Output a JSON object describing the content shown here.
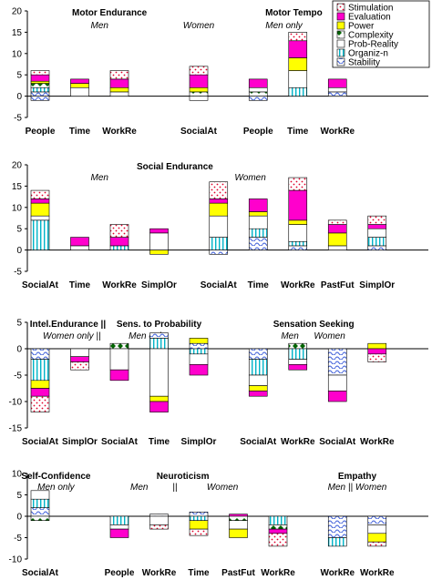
{
  "legend": {
    "items": [
      {
        "key": "stim",
        "label": "Stimulation",
        "fill": "#ffffff",
        "pattern": "dots",
        "patternColor": "#e0002a"
      },
      {
        "key": "eval",
        "label": "Evaluation",
        "fill": "#ff00cc",
        "pattern": "none"
      },
      {
        "key": "power",
        "label": "Power",
        "fill": "#ffff00",
        "pattern": "none"
      },
      {
        "key": "comp",
        "label": "Complexity",
        "fill": "#ffffff",
        "pattern": "diamonds",
        "patternColor": "#006400"
      },
      {
        "key": "prob",
        "label": "Prob-Reality",
        "fill": "#ffffff",
        "pattern": "none"
      },
      {
        "key": "org",
        "label": "Organiz-n",
        "fill": "#ffffff",
        "pattern": "vlines",
        "patternColor": "#00b4c8"
      },
      {
        "key": "stab",
        "label": "Stability",
        "fill": "#ffffff",
        "pattern": "waves",
        "patternColor": "#3a5bd9"
      }
    ]
  },
  "chart_data": [
    {
      "type": "bar",
      "stacked": true,
      "ylim": [
        -5,
        20
      ],
      "yticks": [
        -5,
        0,
        5,
        10,
        15,
        20
      ],
      "grid": false,
      "titles": [
        {
          "text": "Motor Endurance",
          "style": "bold",
          "at": 1.75
        },
        {
          "text": "Motor Tempo",
          "style": "bold",
          "at": 6.4
        }
      ],
      "notes": [
        {
          "text": "Men",
          "at": 1.5
        },
        {
          "text": "Women",
          "at": 4
        },
        {
          "text": "Men only",
          "at": 6.15
        }
      ],
      "bars": [
        {
          "label": "People",
          "x": 0,
          "neg": [
            {
              "k": "stab",
              "v": 1
            }
          ],
          "pos": [
            {
              "k": "stab",
              "v": 1
            },
            {
              "k": "org",
              "v": 1
            },
            {
              "k": "comp",
              "v": 1
            },
            {
              "k": "power",
              "v": 0.5
            },
            {
              "k": "eval",
              "v": 1.5
            },
            {
              "k": "stim",
              "v": 1
            }
          ]
        },
        {
          "label": "Time",
          "x": 1,
          "neg": [],
          "pos": [
            {
              "k": "prob",
              "v": 2
            },
            {
              "k": "power",
              "v": 1
            },
            {
              "k": "eval",
              "v": 1
            }
          ]
        },
        {
          "label": "WorkRe",
          "x": 2,
          "neg": [],
          "pos": [
            {
              "k": "prob",
              "v": 1
            },
            {
              "k": "power",
              "v": 1
            },
            {
              "k": "eval",
              "v": 2
            },
            {
              "k": "stim",
              "v": 2
            }
          ]
        },
        {
          "label": "SocialAt",
          "x": 4,
          "neg": [
            {
              "k": "prob",
              "v": 1
            }
          ],
          "pos": [
            {
              "k": "comp",
              "v": 1
            },
            {
              "k": "power",
              "v": 1
            },
            {
              "k": "eval",
              "v": 3
            },
            {
              "k": "stim",
              "v": 2
            }
          ]
        },
        {
          "label": "People",
          "x": 5.5,
          "neg": [
            {
              "k": "stab",
              "v": 1
            }
          ],
          "pos": [
            {
              "k": "comp",
              "v": 1
            },
            {
              "k": "prob",
              "v": 1
            },
            {
              "k": "eval",
              "v": 2
            }
          ]
        },
        {
          "label": "Time",
          "x": 6.5,
          "neg": [],
          "pos": [
            {
              "k": "org",
              "v": 2
            },
            {
              "k": "prob",
              "v": 4
            },
            {
              "k": "power",
              "v": 3
            },
            {
              "k": "eval",
              "v": 4
            },
            {
              "k": "stim",
              "v": 2
            }
          ]
        },
        {
          "label": "WorkRe",
          "x": 7.5,
          "neg": [],
          "pos": [
            {
              "k": "stab",
              "v": 1
            },
            {
              "k": "prob",
              "v": 1
            },
            {
              "k": "eval",
              "v": 2
            }
          ]
        }
      ]
    },
    {
      "type": "bar",
      "stacked": true,
      "ylim": [
        -5,
        20
      ],
      "yticks": [
        -5,
        0,
        5,
        10,
        15,
        20
      ],
      "grid": false,
      "titles": [
        {
          "text": "Social Endurance",
          "style": "bold",
          "at": 3.4
        }
      ],
      "notes": [
        {
          "text": "Men",
          "at": 1.5
        },
        {
          "text": "Women",
          "at": 5.3
        }
      ],
      "bars": [
        {
          "label": "SocialAt",
          "x": 0,
          "neg": [],
          "pos": [
            {
              "k": "org",
              "v": 7
            },
            {
              "k": "prob",
              "v": 1
            },
            {
              "k": "power",
              "v": 3
            },
            {
              "k": "eval",
              "v": 1
            },
            {
              "k": "stim",
              "v": 2
            }
          ]
        },
        {
          "label": "Time",
          "x": 1,
          "neg": [],
          "pos": [
            {
              "k": "prob",
              "v": 1
            },
            {
              "k": "eval",
              "v": 2
            }
          ]
        },
        {
          "label": "WorkRe",
          "x": 2,
          "neg": [],
          "pos": [
            {
              "k": "org",
              "v": 1
            },
            {
              "k": "eval",
              "v": 2
            },
            {
              "k": "stim",
              "v": 3
            }
          ]
        },
        {
          "label": "SimplOr",
          "x": 3,
          "neg": [
            {
              "k": "power",
              "v": 1
            }
          ],
          "pos": [
            {
              "k": "prob",
              "v": 4
            },
            {
              "k": "eval",
              "v": 1
            }
          ]
        },
        {
          "label": "SocialAt",
          "x": 4.5,
          "neg": [
            {
              "k": "stab",
              "v": 1
            }
          ],
          "pos": [
            {
              "k": "org",
              "v": 3
            },
            {
              "k": "prob",
              "v": 5
            },
            {
              "k": "power",
              "v": 3
            },
            {
              "k": "eval",
              "v": 1
            },
            {
              "k": "stim",
              "v": 4
            }
          ]
        },
        {
          "label": "Time",
          "x": 5.5,
          "neg": [],
          "pos": [
            {
              "k": "stab",
              "v": 3
            },
            {
              "k": "org",
              "v": 2
            },
            {
              "k": "prob",
              "v": 3
            },
            {
              "k": "power",
              "v": 1
            },
            {
              "k": "eval",
              "v": 3
            }
          ]
        },
        {
          "label": "WorkRe",
          "x": 6.5,
          "neg": [],
          "pos": [
            {
              "k": "stab",
              "v": 1
            },
            {
              "k": "org",
              "v": 1
            },
            {
              "k": "prob",
              "v": 4
            },
            {
              "k": "power",
              "v": 1
            },
            {
              "k": "eval",
              "v": 7
            },
            {
              "k": "stim",
              "v": 3
            }
          ]
        },
        {
          "label": "PastFut",
          "x": 7.5,
          "neg": [],
          "pos": [
            {
              "k": "prob",
              "v": 1
            },
            {
              "k": "power",
              "v": 3
            },
            {
              "k": "eval",
              "v": 2
            },
            {
              "k": "stim",
              "v": 1
            }
          ]
        },
        {
          "label": "SimplOr",
          "x": 8.5,
          "neg": [],
          "pos": [
            {
              "k": "stab",
              "v": 1
            },
            {
              "k": "org",
              "v": 2
            },
            {
              "k": "prob",
              "v": 2
            },
            {
              "k": "eval",
              "v": 1
            },
            {
              "k": "stim",
              "v": 2
            }
          ]
        }
      ]
    },
    {
      "type": "bar",
      "stacked": true,
      "ylim": [
        -15,
        5
      ],
      "yticks": [
        -15,
        -10,
        -5,
        0,
        5
      ],
      "grid": false,
      "titles": [
        {
          "text": "Intel.Endurance ||",
          "style": "bold",
          "at": 0.7
        },
        {
          "text": "Sens. to Probability",
          "style": "bold",
          "at": 3.0
        },
        {
          "text": "Sensation Seeking",
          "style": "bold",
          "at": 6.9
        }
      ],
      "notes": [
        {
          "text": "Women only  ||",
          "at": 0.8
        },
        {
          "text": "Men only",
          "at": 2.7
        },
        {
          "text": "Men",
          "at": 6.3
        },
        {
          "text": "Women",
          "at": 7.3
        }
      ],
      "bars": [
        {
          "label": "SocialAt",
          "x": 0,
          "neg": [
            {
              "k": "stab",
              "v": 2
            },
            {
              "k": "org",
              "v": 4
            },
            {
              "k": "power",
              "v": 1.5
            },
            {
              "k": "eval",
              "v": 1.5
            },
            {
              "k": "stim",
              "v": 3
            }
          ],
          "pos": []
        },
        {
          "label": "SimplOr",
          "x": 1,
          "neg": [
            {
              "k": "prob",
              "v": 1.5
            },
            {
              "k": "eval",
              "v": 1
            },
            {
              "k": "stim",
              "v": 1.5
            }
          ],
          "pos": []
        },
        {
          "label": "SocialAt",
          "x": 2,
          "neg": [
            {
              "k": "prob",
              "v": 4
            },
            {
              "k": "eval",
              "v": 2
            }
          ],
          "pos": [
            {
              "k": "comp",
              "v": 1
            }
          ]
        },
        {
          "label": "Time",
          "x": 3,
          "neg": [
            {
              "k": "prob",
              "v": 9
            },
            {
              "k": "power",
              "v": 1
            },
            {
              "k": "eval",
              "v": 2
            }
          ],
          "pos": [
            {
              "k": "org",
              "v": 2
            },
            {
              "k": "stab",
              "v": 1
            }
          ]
        },
        {
          "label": "SimplOr",
          "x": 4,
          "neg": [
            {
              "k": "org",
              "v": 1
            },
            {
              "k": "prob",
              "v": 2
            },
            {
              "k": "eval",
              "v": 2
            }
          ],
          "pos": [
            {
              "k": "stab",
              "v": 1
            },
            {
              "k": "power",
              "v": 1
            }
          ]
        },
        {
          "label": "SocialAt",
          "x": 5.5,
          "neg": [
            {
              "k": "stab",
              "v": 2
            },
            {
              "k": "org",
              "v": 3
            },
            {
              "k": "prob",
              "v": 2
            },
            {
              "k": "power",
              "v": 1
            },
            {
              "k": "eval",
              "v": 1
            }
          ],
          "pos": []
        },
        {
          "label": "WorkRe",
          "x": 6.5,
          "neg": [
            {
              "k": "org",
              "v": 2
            },
            {
              "k": "prob",
              "v": 1
            },
            {
              "k": "eval",
              "v": 1
            }
          ],
          "pos": [
            {
              "k": "comp",
              "v": 1
            }
          ]
        },
        {
          "label": "SocialAt",
          "x": 7.5,
          "neg": [
            {
              "k": "stab",
              "v": 5
            },
            {
              "k": "prob",
              "v": 3
            },
            {
              "k": "eval",
              "v": 2
            }
          ],
          "pos": []
        },
        {
          "label": "WorkRe",
          "x": 8.5,
          "neg": [
            {
              "k": "eval",
              "v": 1
            },
            {
              "k": "stim",
              "v": 1.5
            }
          ],
          "pos": [
            {
              "k": "power",
              "v": 1
            }
          ]
        }
      ]
    },
    {
      "type": "bar",
      "stacked": true,
      "ylim": [
        -10,
        10
      ],
      "yticks": [
        -10,
        -5,
        0,
        5,
        10
      ],
      "grid": false,
      "titles": [
        {
          "text": "Self-Confidence",
          "style": "bold",
          "at": 0.4
        },
        {
          "text": "Neuroticism",
          "style": "bold",
          "at": 3.6
        },
        {
          "text": "Empathy",
          "style": "bold",
          "at": 8.0
        }
      ],
      "notes": [
        {
          "text": "Men only",
          "at": 0.4
        },
        {
          "text": "Men",
          "at": 2.5
        },
        {
          "text": "||",
          "at": 3.4
        },
        {
          "text": "Women",
          "at": 4.6
        },
        {
          "text": "Men || Women",
          "at": 8.0
        }
      ],
      "bars": [
        {
          "label": "SocialAt",
          "x": 0,
          "neg": [
            {
              "k": "comp",
              "v": 1
            }
          ],
          "pos": [
            {
              "k": "stab",
              "v": 2
            },
            {
              "k": "org",
              "v": 2
            },
            {
              "k": "prob",
              "v": 2
            }
          ]
        },
        {
          "label": "People",
          "x": 2,
          "neg": [
            {
              "k": "org",
              "v": 2
            },
            {
              "k": "prob",
              "v": 1
            },
            {
              "k": "eval",
              "v": 2
            }
          ],
          "pos": []
        },
        {
          "label": "WorkRe",
          "x": 3,
          "neg": [
            {
              "k": "prob",
              "v": 2
            },
            {
              "k": "stim",
              "v": 1
            }
          ],
          "pos": [
            {
              "k": "stab",
              "v": 0.5
            }
          ]
        },
        {
          "label": "Time",
          "x": 4,
          "neg": [
            {
              "k": "org",
              "v": 1
            },
            {
              "k": "power",
              "v": 2
            },
            {
              "k": "stim",
              "v": 1.5
            }
          ],
          "pos": [
            {
              "k": "stab",
              "v": 1
            }
          ]
        },
        {
          "label": "PastFut",
          "x": 5,
          "neg": [
            {
              "k": "comp",
              "v": 1
            },
            {
              "k": "prob",
              "v": 2
            },
            {
              "k": "power",
              "v": 2
            }
          ],
          "pos": [
            {
              "k": "eval",
              "v": 0.5
            }
          ]
        },
        {
          "label": "WorkRe",
          "x": 6,
          "neg": [
            {
              "k": "org",
              "v": 2
            },
            {
              "k": "comp",
              "v": 1
            },
            {
              "k": "eval",
              "v": 1
            },
            {
              "k": "stim",
              "v": 3
            }
          ],
          "pos": []
        },
        {
          "label": "WorkRe",
          "x": 7.5,
          "neg": [
            {
              "k": "stab",
              "v": 5
            },
            {
              "k": "org",
              "v": 2
            }
          ],
          "pos": []
        },
        {
          "label": "WorkRe",
          "x": 8.5,
          "neg": [
            {
              "k": "stab",
              "v": 2
            },
            {
              "k": "prob",
              "v": 2
            },
            {
              "k": "power",
              "v": 2
            },
            {
              "k": "stim",
              "v": 1
            }
          ],
          "pos": []
        }
      ]
    }
  ]
}
